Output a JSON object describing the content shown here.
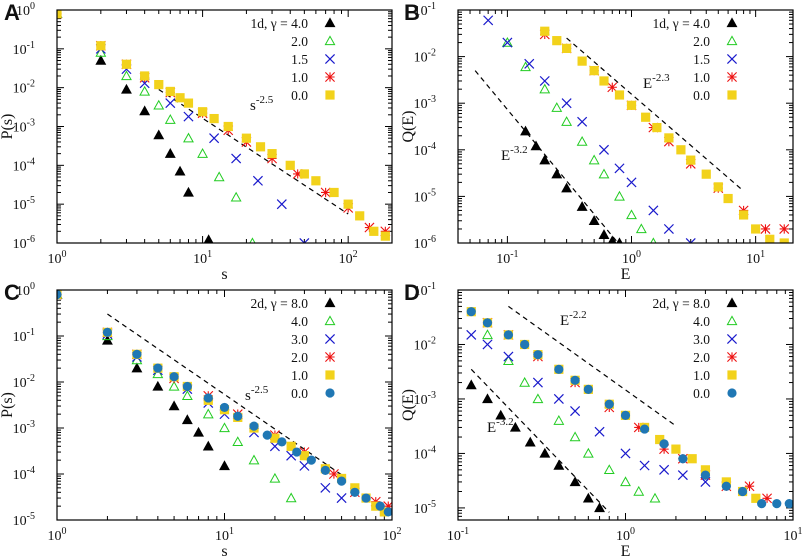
{
  "chart_data": [
    {
      "panel": "A",
      "type": "scatter",
      "xscale": "log",
      "yscale": "log",
      "xlim": [
        1,
        200
      ],
      "ylim": [
        1e-06,
        1
      ],
      "xlabel": "s",
      "ylabel": "P(s)",
      "xticks": [
        1,
        10,
        100
      ],
      "yticks": [
        1e-06,
        1e-05,
        0.0001,
        0.001,
        0.01,
        0.1,
        1
      ],
      "legend_title": "1d, γ =",
      "legend_position": "top-right",
      "series": [
        {
          "name": "4.0",
          "marker": "triangle-filled",
          "color": "#000000",
          "x": [
            1,
            2,
            3,
            4,
            5,
            6,
            7,
            8,
            11
          ],
          "y": [
            0.8,
            0.05,
            0.009,
            0.0025,
            0.0006,
            0.0002,
            7e-05,
            2e-05,
            1.2e-06
          ]
        },
        {
          "name": "2.0",
          "marker": "triangle-open",
          "color": "#22cc22",
          "x": [
            1,
            2,
            3,
            4,
            5,
            6,
            8,
            10,
            13,
            17,
            22
          ],
          "y": [
            0.8,
            0.08,
            0.02,
            0.008,
            0.0035,
            0.0015,
            0.0005,
            0.0002,
            5e-05,
            1.5e-05,
            1e-06
          ]
        },
        {
          "name": "1.5",
          "marker": "x",
          "color": "#1a1acc",
          "x": [
            1,
            2,
            3,
            4,
            6,
            8,
            12,
            17,
            24,
            35,
            50
          ],
          "y": [
            0.8,
            0.1,
            0.03,
            0.013,
            0.004,
            0.0018,
            0.0005,
            0.00015,
            4e-05,
            1e-05,
            1e-06
          ]
        },
        {
          "name": "1.0",
          "marker": "star",
          "color": "#ee1111",
          "x": [
            1,
            2,
            3,
            4,
            6,
            10,
            15,
            20,
            30,
            45,
            70,
            100,
            140,
            180
          ],
          "y": [
            0.8,
            0.12,
            0.04,
            0.018,
            0.0075,
            0.0022,
            0.0008,
            0.0004,
            0.00015,
            6e-05,
            2e-05,
            8e-06,
            2.5e-06,
            2e-06
          ]
        },
        {
          "name": "0.0",
          "marker": "square",
          "color": "#f2d21b",
          "x": [
            1,
            2,
            3,
            4,
            5,
            6,
            7,
            8,
            10,
            12,
            15,
            20,
            25,
            30,
            40,
            50,
            60,
            80,
            100,
            120,
            150,
            180
          ],
          "y": [
            0.8,
            0.12,
            0.04,
            0.02,
            0.012,
            0.008,
            0.0055,
            0.004,
            0.0024,
            0.0016,
            0.001,
            0.0005,
            0.0003,
            0.0002,
            0.0001,
            6e-05,
            4e-05,
            2e-05,
            1e-05,
            5e-06,
            2e-06,
            1.5e-06
          ]
        }
      ],
      "guide_lines": [
        {
          "label_base": "s",
          "label_exp": "-2.5",
          "x": [
            5,
            100
          ],
          "y": [
            0.009,
            5.6e-06
          ]
        }
      ]
    },
    {
      "panel": "B",
      "type": "scatter",
      "xscale": "log",
      "yscale": "log",
      "xlim": [
        0.04,
        20
      ],
      "ylim": [
        1e-06,
        0.1
      ],
      "xlabel": "E",
      "ylabel": "Q(E)",
      "xticks": [
        0.1,
        1,
        10
      ],
      "yticks": [
        1e-06,
        1e-05,
        0.0001,
        0.001,
        0.01,
        0.1
      ],
      "legend_title": "1d, γ =",
      "legend_position": "top-right",
      "series": [
        {
          "name": "4.0",
          "marker": "triangle-filled",
          "color": "#000000",
          "x": [
            0.14,
            0.17,
            0.2,
            0.25,
            0.3,
            0.4,
            0.5,
            0.6,
            0.7,
            0.8
          ],
          "y": [
            0.00025,
            0.00012,
            6e-05,
            3e-05,
            1.5e-05,
            6e-06,
            3e-06,
            1.5e-06,
            1.1e-06,
            1e-06
          ]
        },
        {
          "name": "2.0",
          "marker": "triangle-open",
          "color": "#22cc22",
          "x": [
            0.1,
            0.14,
            0.2,
            0.25,
            0.3,
            0.4,
            0.5,
            0.6,
            0.8,
            1.0,
            1.2,
            1.5
          ],
          "y": [
            0.02,
            0.006,
            0.002,
            0.0008,
            0.0004,
            0.00015,
            6e-05,
            3e-05,
            1e-05,
            4e-06,
            2e-06,
            1e-06
          ]
        },
        {
          "name": "1.5",
          "marker": "x",
          "color": "#1a1acc",
          "x": [
            0.07,
            0.1,
            0.15,
            0.2,
            0.3,
            0.4,
            0.6,
            0.8,
            1.0,
            1.5,
            2.0,
            3.0
          ],
          "y": [
            0.06,
            0.02,
            0.007,
            0.003,
            0.001,
            0.0004,
            0.0001,
            4e-05,
            2e-05,
            5e-06,
            2e-06,
            1e-06
          ]
        },
        {
          "name": "1.0",
          "marker": "star",
          "color": "#ee1111",
          "x": [
            0.2,
            0.3,
            0.5,
            0.7,
            1.0,
            1.5,
            2.0,
            3.0,
            5.0,
            8.0,
            12.0,
            17.0
          ],
          "y": [
            0.03,
            0.015,
            0.005,
            0.0022,
            0.0009,
            0.0003,
            0.00015,
            5e-05,
            1.5e-05,
            5e-06,
            2e-06,
            2e-06
          ]
        },
        {
          "name": "0.0",
          "marker": "square",
          "color": "#f2d21b",
          "x": [
            0.2,
            0.25,
            0.3,
            0.4,
            0.5,
            0.6,
            0.8,
            1.0,
            1.3,
            1.6,
            2.0,
            2.5,
            3.0,
            4.0,
            5.0,
            6.0,
            8.0,
            10.0,
            13.0,
            17.0
          ],
          "y": [
            0.035,
            0.022,
            0.015,
            0.008,
            0.005,
            0.003,
            0.0015,
            0.0009,
            0.0005,
            0.0003,
            0.00018,
            0.0001,
            6e-05,
            3e-05,
            1.6e-05,
            9e-06,
            4e-06,
            2e-06,
            1.2e-06,
            1e-06
          ]
        }
      ],
      "guide_lines": [
        {
          "label_base": "E",
          "label_exp": "-2.3",
          "x": [
            0.3,
            8
          ],
          "y": [
            0.025,
            1.3e-05
          ]
        },
        {
          "label_base": "E",
          "label_exp": "-3.2",
          "x": [
            0.055,
            0.9
          ],
          "y": [
            0.005,
            6.3e-07
          ]
        }
      ]
    },
    {
      "panel": "C",
      "type": "scatter",
      "xscale": "log",
      "yscale": "log",
      "xlim": [
        1,
        100
      ],
      "ylim": [
        1e-05,
        1
      ],
      "xlabel": "s",
      "ylabel": "P(s)",
      "xticks": [
        1,
        10,
        100
      ],
      "yticks": [
        1e-05,
        0.0001,
        0.001,
        0.01,
        0.1,
        1
      ],
      "legend_title": "2d, γ =",
      "legend_position": "top-right",
      "series": [
        {
          "name": "8.0",
          "marker": "triangle-filled",
          "color": "#000000",
          "x": [
            1,
            2,
            3,
            4,
            5,
            6,
            7,
            8,
            10
          ],
          "y": [
            0.8,
            0.08,
            0.02,
            0.008,
            0.003,
            0.0015,
            0.0008,
            0.0004,
            0.00015
          ]
        },
        {
          "name": "4.0",
          "marker": "triangle-open",
          "color": "#22cc22",
          "x": [
            1,
            2,
            3,
            4,
            5,
            6,
            8,
            10,
            12,
            15,
            20,
            25
          ],
          "y": [
            0.8,
            0.1,
            0.03,
            0.015,
            0.008,
            0.005,
            0.002,
            0.001,
            0.0005,
            0.0002,
            8e-05,
            3e-05
          ]
        },
        {
          "name": "3.0",
          "marker": "x",
          "color": "#1a1acc",
          "x": [
            1,
            2,
            3,
            4,
            6,
            8,
            10,
            15,
            20,
            25,
            30,
            40,
            50
          ],
          "y": [
            0.8,
            0.11,
            0.035,
            0.018,
            0.007,
            0.0035,
            0.002,
            0.0008,
            0.0004,
            0.00025,
            0.00015,
            5e-05,
            3e-05
          ]
        },
        {
          "name": "2.0",
          "marker": "star",
          "color": "#ee1111",
          "x": [
            1,
            2,
            3,
            5,
            8,
            12,
            20,
            30,
            45,
            60,
            80,
            95
          ],
          "y": [
            0.8,
            0.12,
            0.04,
            0.012,
            0.005,
            0.002,
            0.0007,
            0.0003,
            0.0001,
            4e-05,
            2.5e-05,
            2e-05
          ]
        },
        {
          "name": "1.0",
          "marker": "square",
          "color": "#f2d21b",
          "x": [
            1,
            2,
            3,
            4,
            5,
            6,
            8,
            10,
            12,
            15,
            20,
            25,
            30,
            40,
            50,
            60,
            70,
            80,
            90
          ],
          "y": [
            0.8,
            0.12,
            0.04,
            0.02,
            0.013,
            0.008,
            0.004,
            0.0025,
            0.0017,
            0.001,
            0.0006,
            0.0004,
            0.00025,
            0.00013,
            8e-05,
            5e-05,
            3e-05,
            2e-05,
            1.5e-05
          ]
        },
        {
          "name": "0.0",
          "marker": "circle",
          "color": "#1f77b4",
          "x": [
            1,
            2,
            3,
            4,
            5,
            6,
            8,
            10,
            12,
            15,
            18,
            22,
            27,
            33,
            40,
            50,
            60,
            70,
            85,
            95
          ],
          "y": [
            0.8,
            0.12,
            0.04,
            0.02,
            0.013,
            0.008,
            0.0045,
            0.0028,
            0.0018,
            0.0011,
            0.0007,
            0.0005,
            0.0003,
            0.0002,
            0.00012,
            7e-05,
            4e-05,
            3e-05,
            2e-05,
            1.5e-05
          ]
        }
      ],
      "guide_lines": [
        {
          "label_base": "s",
          "label_exp": "-2.5",
          "x": [
            2,
            50
          ],
          "y": [
            0.3,
            9.6e-05
          ]
        }
      ]
    },
    {
      "panel": "D",
      "type": "scatter",
      "xscale": "log",
      "yscale": "log",
      "xlim": [
        0.1,
        10
      ],
      "ylim": [
        6e-06,
        0.1
      ],
      "xlabel": "E",
      "ylabel": "Q(E)",
      "xticks": [
        0.1,
        1,
        10
      ],
      "yticks": [
        1e-05,
        0.0001,
        0.001,
        0.01,
        0.1
      ],
      "legend_title": "2d, γ =",
      "legend_position": "top-right",
      "series": [
        {
          "name": "8.0",
          "marker": "triangle-filled",
          "color": "#000000",
          "x": [
            0.12,
            0.15,
            0.18,
            0.22,
            0.27,
            0.33,
            0.4,
            0.5,
            0.6,
            0.7
          ],
          "y": [
            0.0018,
            0.001,
            0.0005,
            0.0003,
            0.00016,
            0.0001,
            6e-05,
            3e-05,
            1.5e-05,
            1e-05
          ]
        },
        {
          "name": "4.0",
          "marker": "triangle-open",
          "color": "#22cc22",
          "x": [
            0.15,
            0.2,
            0.25,
            0.3,
            0.4,
            0.5,
            0.6,
            0.8,
            1.0,
            1.2,
            1.5
          ],
          "y": [
            0.015,
            0.005,
            0.002,
            0.001,
            0.0004,
            0.0002,
            0.0001,
            5e-05,
            3e-05,
            2e-05,
            1.5e-05
          ]
        },
        {
          "name": "3.0",
          "marker": "x",
          "color": "#1a1acc",
          "x": [
            0.12,
            0.15,
            0.2,
            0.3,
            0.4,
            0.5,
            0.7,
            1.0,
            1.3,
            1.7,
            2.2,
            3.0
          ],
          "y": [
            0.015,
            0.01,
            0.006,
            0.002,
            0.001,
            0.0006,
            0.00025,
            0.0001,
            6e-05,
            5e-05,
            4e-05,
            3e-05
          ]
        },
        {
          "name": "2.0",
          "marker": "star",
          "color": "#ee1111",
          "x": [
            0.15,
            0.2,
            0.3,
            0.5,
            0.8,
            1.2,
            1.7,
            2.2,
            3.0,
            4.0,
            5.5,
            7.0
          ],
          "y": [
            0.025,
            0.015,
            0.006,
            0.002,
            0.0007,
            0.0003,
            0.00012,
            8e-05,
            4e-05,
            2.5e-05,
            2.5e-05,
            1.5e-05
          ]
        },
        {
          "name": "1.0",
          "marker": "square",
          "color": "#f2d21b",
          "x": [
            0.12,
            0.15,
            0.2,
            0.25,
            0.3,
            0.4,
            0.5,
            0.6,
            0.8,
            1.0,
            1.3,
            1.6,
            2.0,
            2.5,
            3.0,
            4.0,
            5.0,
            6.0
          ],
          "y": [
            0.04,
            0.025,
            0.015,
            0.01,
            0.0065,
            0.0035,
            0.0022,
            0.0015,
            0.0008,
            0.0005,
            0.0003,
            0.00018,
            0.00012,
            8e-05,
            5e-05,
            3e-05,
            2e-05,
            1.5e-05
          ]
        },
        {
          "name": "0.0",
          "marker": "circle",
          "color": "#1f77b4",
          "x": [
            0.12,
            0.15,
            0.2,
            0.25,
            0.3,
            0.4,
            0.5,
            0.6,
            0.8,
            1.0,
            1.3,
            1.7,
            2.2,
            3.0,
            4.0,
            5.0,
            6.5,
            8.0,
            9.5
          ],
          "y": [
            0.04,
            0.025,
            0.015,
            0.01,
            0.0065,
            0.0035,
            0.0022,
            0.0015,
            0.0008,
            0.0005,
            0.00028,
            0.00015,
            8e-05,
            4e-05,
            2.5e-05,
            2e-05,
            1.2e-05,
            1.2e-05,
            1.2e-05
          ]
        }
      ],
      "guide_lines": [
        {
          "label_base": "E",
          "label_exp": "-2.2",
          "x": [
            0.2,
            2
          ],
          "y": [
            0.05,
            0.00032
          ]
        },
        {
          "label_base": "E",
          "label_exp": "-3.2",
          "x": [
            0.12,
            0.8
          ],
          "y": [
            0.0035,
            8.3e-06
          ]
        }
      ]
    }
  ]
}
